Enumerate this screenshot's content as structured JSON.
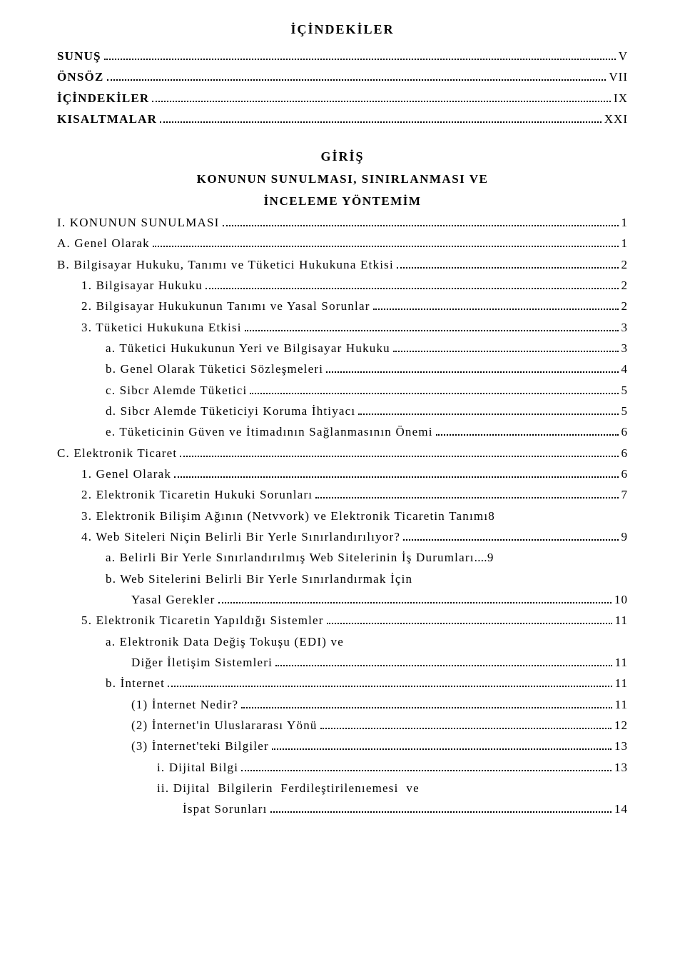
{
  "title": "İÇİNDEKİLER",
  "front": [
    {
      "label": "SUNUŞ",
      "page": "V",
      "bold": true,
      "indent": 0
    },
    {
      "label": "ÖNSÖZ",
      "page": "VII",
      "bold": true,
      "indent": 0
    },
    {
      "label": "İÇİNDEKİLER",
      "page": "IX",
      "bold": true,
      "indent": 0
    },
    {
      "label": "KISALTMALAR",
      "page": "XXI",
      "bold": true,
      "indent": 0
    }
  ],
  "giris": {
    "heading": "GİRİŞ",
    "sub1": "KONUNUN SUNULMASI, SINIRLANMASI VE",
    "sub2": "İNCELEME YÖNTEMİM"
  },
  "entries": [
    {
      "label": "I. KONUNUN SUNULMASI",
      "page": "1",
      "bold": false,
      "indent": 0
    },
    {
      "label": "A. Genel Olarak",
      "page": "1",
      "bold": false,
      "indent": 0
    },
    {
      "label": "B. Bilgisayar Hukuku, Tanımı ve Tüketici Hukukuna Etkisi",
      "page": "2",
      "bold": false,
      "indent": 0
    },
    {
      "label": "1. Bilgisayar Hukuku",
      "page": "2",
      "bold": false,
      "indent": 1
    },
    {
      "label": "2. Bilgisayar Hukukunun Tanımı ve Yasal Sorunlar",
      "page": "2",
      "bold": false,
      "indent": 1
    },
    {
      "label": "3. Tüketici Hukukuna Etkisi",
      "page": "3",
      "bold": false,
      "indent": 1
    },
    {
      "label": "a. Tüketici Hukukunun Yeri ve Bilgisayar Hukuku",
      "page": "3",
      "bold": false,
      "indent": 2
    },
    {
      "label": "b. Genel Olarak Tüketici Sözleşmeleri",
      "page": "4",
      "bold": false,
      "indent": 2
    },
    {
      "label": "c. Sibcr Alemde Tüketici",
      "page": "5",
      "bold": false,
      "indent": 2
    },
    {
      "label": "d. Sibcr Alemde Tüketiciyi Koruma İhtiyacı",
      "page": "5",
      "bold": false,
      "indent": 2
    },
    {
      "label": "e. Tüketicinin Güven ve İtimadının Sağlanmasının Önemi",
      "page": "6",
      "bold": false,
      "indent": 2
    },
    {
      "label": "C. Elektronik Ticaret",
      "page": "6",
      "bold": false,
      "indent": 0
    },
    {
      "label": "1. Genel Olarak",
      "page": "6",
      "bold": false,
      "indent": 1
    },
    {
      "label": "2. Elektronik Ticaretin Hukuki Sorunları",
      "page": "7",
      "bold": false,
      "indent": 1
    },
    {
      "label": "3. Elektronik Bilişim Ağının (Netvvork) ve Elektronik Ticaretin Tanımı",
      "page": "8",
      "bold": false,
      "indent": 1,
      "noDots": true
    },
    {
      "label": "4. Web Siteleri Niçin Belirli Bir Yerle Sınırlandırılıyor?",
      "page": "9",
      "bold": false,
      "indent": 1
    },
    {
      "label": "a. Belirli Bir Yerle Sınırlandırılmış Web Sitelerinin İş Durumları",
      "page": "9",
      "bold": false,
      "indent": 2,
      "shortDots": true
    },
    {
      "label": "b. Web Sitelerini Belirli Bir Yerle Sınırlandırmak İçin",
      "page": "",
      "bold": false,
      "indent": 2,
      "noPage": true
    },
    {
      "label": "Yasal Gerekler",
      "page": "10",
      "bold": false,
      "indent": 3
    },
    {
      "label": "5. Elektronik Ticaretin Yapıldığı Sistemler",
      "page": "11",
      "bold": false,
      "indent": 1
    },
    {
      "label": "a. Elektronik Data Değiş Tokuşu (EDI) ve",
      "page": "",
      "bold": false,
      "indent": 2,
      "noPage": true
    },
    {
      "label": "Diğer İletişim Sistemleri",
      "page": "11",
      "bold": false,
      "indent": 3
    },
    {
      "label": "b. İnternet",
      "page": "11",
      "bold": false,
      "indent": 2
    },
    {
      "label": "(1) İnternet Nedir?",
      "page": "11",
      "bold": false,
      "indent": 3
    },
    {
      "label": "(2) İnternet'in Uluslararası Yönü",
      "page": "12",
      "bold": false,
      "indent": 3
    },
    {
      "label": "(3) İnternet'teki Bilgiler",
      "page": "13",
      "bold": false,
      "indent": 3
    },
    {
      "label": "i. Dijital Bilgi",
      "page": "13",
      "bold": false,
      "indent": 4
    },
    {
      "label": "ii. Dijital  Bilgilerin  Ferdileştirilenıemesi  ve",
      "page": "",
      "bold": false,
      "indent": 4,
      "noPage": true
    },
    {
      "label": "İspat Sorunları",
      "page": "14",
      "bold": false,
      "indent": 5
    }
  ]
}
